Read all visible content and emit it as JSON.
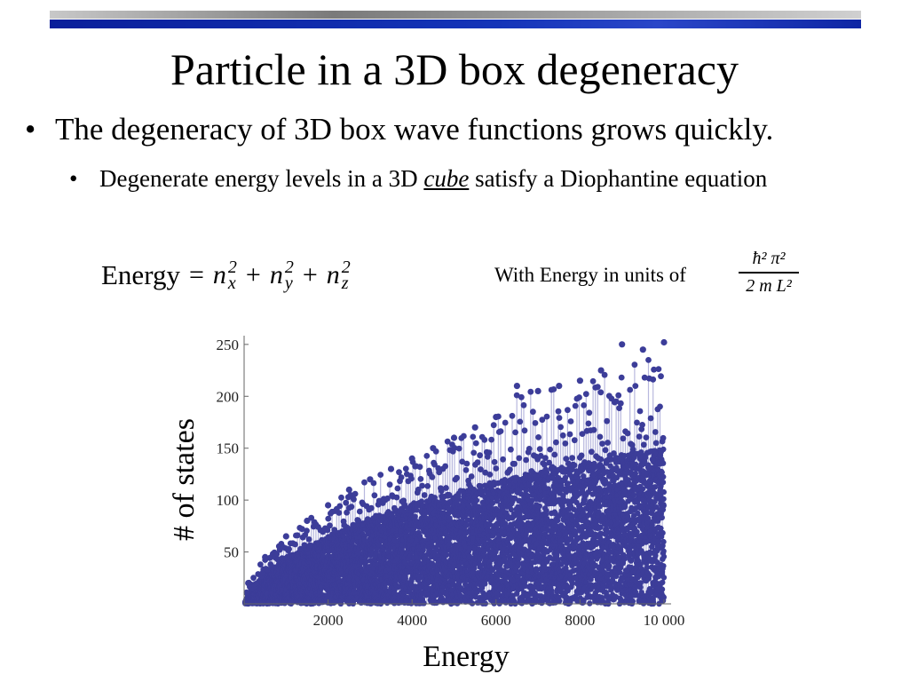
{
  "title": "Particle in a 3D box degeneracy",
  "bullets": {
    "level1": "The degeneracy of 3D box wave functions grows quickly.",
    "level2_before": "Degenerate energy levels in a 3D ",
    "level2_emph": "cube",
    "level2_after": " satisfy a Diophantine equation",
    "marker": "•"
  },
  "formula": {
    "lhs": "Energy",
    "eq": "=",
    "terms": [
      "n",
      "n",
      "n"
    ],
    "subscripts": [
      "x",
      "y",
      "z"
    ],
    "superscript": "2",
    "plus": "+"
  },
  "units": {
    "label": "With Energy in units of",
    "numerator": "ħ² π²",
    "denominator": "2 m L²"
  },
  "chart_data": {
    "type": "scatter",
    "title": "",
    "xlabel": "Energy",
    "ylabel": "# of states",
    "xlim": [
      0,
      10000
    ],
    "ylim": [
      0,
      255
    ],
    "xticks": [
      2000,
      4000,
      6000,
      8000,
      10000
    ],
    "xtick_labels": [
      "2000",
      "4000",
      "6000",
      "8000",
      "10 000"
    ],
    "yticks": [
      50,
      100,
      150,
      200,
      250
    ],
    "ytick_labels": [
      "50",
      "100",
      "150",
      "200",
      "250"
    ],
    "grid": false,
    "marker_color": "#3c3d99",
    "stem_color": "#b8b8de",
    "series": [
      {
        "envelope_x": [
          100,
          500,
          1000,
          1500,
          2000,
          2500,
          3000,
          3500,
          4000,
          4500,
          5000,
          5500,
          6000,
          6500,
          7000,
          7500,
          8000,
          8500,
          9000,
          9500,
          10000
        ],
        "envelope_max_y": [
          20,
          45,
          65,
          80,
          95,
          110,
          120,
          130,
          140,
          150,
          160,
          170,
          180,
          210,
          205,
          210,
          215,
          225,
          250,
          245,
          252
        ],
        "envelope_typical_y": [
          10,
          30,
          45,
          55,
          65,
          75,
          82,
          90,
          97,
          103,
          108,
          113,
          118,
          123,
          128,
          132,
          136,
          140,
          144,
          147,
          150
        ]
      }
    ]
  }
}
